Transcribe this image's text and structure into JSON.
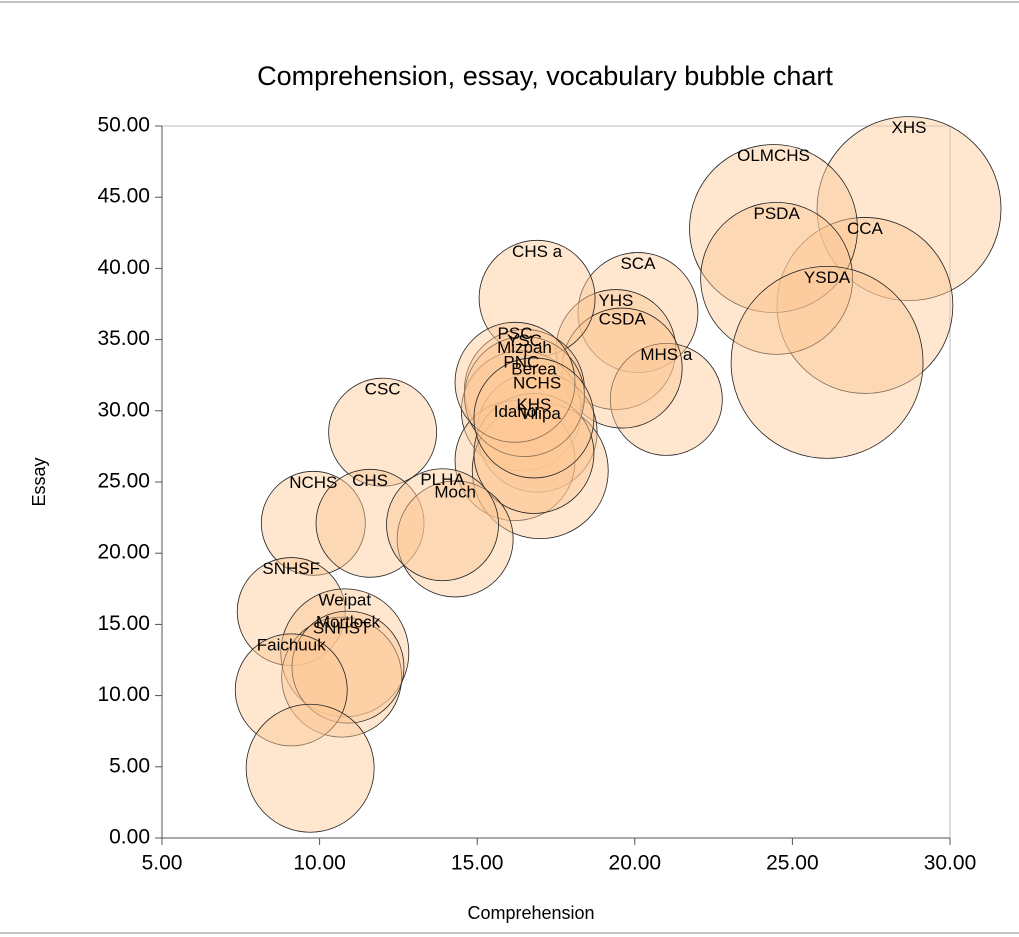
{
  "chart_data": {
    "type": "bubble",
    "title": "Comprehension, essay, vocabulary bubble chart",
    "x_label": "Comprehension",
    "y_label": "Essay",
    "labels": [
      "XHS",
      "CCA",
      "OLMCHS",
      "PSDA",
      "YSDA",
      "SCA",
      "YHS",
      "MHS a",
      "CSDA",
      "CHS a",
      "YSC",
      "PNC",
      "NCHS",
      "Idaho",
      "Vilipa",
      "KHS",
      "Mizpah",
      "PSC",
      "Berea",
      "CSC",
      "NCHS",
      "CHS",
      "Moch",
      "PLHA",
      "SNHSF",
      "Weipat",
      "SNHST",
      "Mortlock",
      "Faichuuk",
      null
    ],
    "x": [
      28.7,
      27.3,
      24.4,
      24.5,
      26.1,
      20.1,
      19.4,
      21.0,
      19.6,
      16.9,
      16.5,
      16.4,
      16.9,
      16.2,
      17.0,
      16.8,
      16.5,
      16.2,
      16.8,
      12.0,
      9.8,
      11.6,
      14.3,
      13.9,
      9.1,
      10.8,
      10.7,
      10.9,
      9.1,
      9.7
    ],
    "values": [
      44.2,
      37.4,
      42.8,
      39.3,
      33.4,
      36.9,
      34.3,
      30.8,
      33.0,
      37.9,
      31.5,
      30.0,
      28.5,
      26.5,
      25.8,
      27.0,
      31.0,
      32.0,
      29.5,
      28.5,
      22.1,
      22.1,
      21.0,
      22.0,
      15.9,
      13.0,
      11.3,
      12.0,
      10.4,
      4.9
    ],
    "sizes": [
      23,
      22,
      21,
      19,
      24,
      15,
      15,
      14,
      15,
      14.5,
      15,
      15,
      15,
      15,
      17,
      15,
      15,
      15,
      15,
      13.5,
      13,
      13.5,
      14.5,
      14,
      13.5,
      16,
      15,
      14,
      14,
      16
    ],
    "color": "#fcc894",
    "xlim": [
      5,
      30
    ],
    "ylim": [
      0,
      50
    ],
    "xticks": [
      {
        "value": 5,
        "label": "5.00"
      },
      {
        "value": 10,
        "label": "10.00"
      },
      {
        "value": 15,
        "label": "15.00"
      },
      {
        "value": 20,
        "label": "20.00"
      },
      {
        "value": 25,
        "label": "25.00"
      },
      {
        "value": 30,
        "label": "30.00"
      }
    ],
    "yticks": [
      {
        "value": 0,
        "label": "0.00"
      },
      {
        "value": 5,
        "label": "5.00"
      },
      {
        "value": 10,
        "label": "10.00"
      },
      {
        "value": 15,
        "label": "15.00"
      },
      {
        "value": 20,
        "label": "20.00"
      },
      {
        "value": 25,
        "label": "25.00"
      },
      {
        "value": 30,
        "label": "30.00"
      },
      {
        "value": 35,
        "label": "35.00"
      },
      {
        "value": 40,
        "label": "40.00"
      },
      {
        "value": 45,
        "label": "45.00"
      },
      {
        "value": 50,
        "label": "50.00"
      }
    ]
  }
}
